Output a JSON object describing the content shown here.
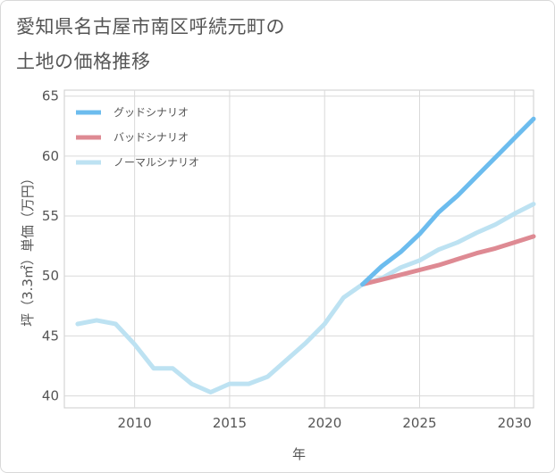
{
  "title_line1": "愛知県名古屋市南区呼続元町の",
  "title_line2": "土地の価格推移",
  "chart_data": {
    "type": "line",
    "xlabel": "年",
    "ylabel": "坪（3.3㎡）単価（万円）",
    "xlim": [
      2006.3,
      2031
    ],
    "ylim": [
      39,
      65.5
    ],
    "xticks": [
      2010,
      2015,
      2020,
      2025,
      2030
    ],
    "yticks": [
      40,
      45,
      50,
      55,
      60,
      65
    ],
    "grid": true,
    "legend_position": "top-left",
    "series": [
      {
        "name": "グッドシナリオ",
        "color": "#6cbcee",
        "x": [
          2022,
          2023,
          2024,
          2025,
          2026,
          2027,
          2028,
          2029,
          2030,
          2031
        ],
        "y": [
          49.3,
          50.8,
          52.0,
          53.5,
          55.3,
          56.7,
          58.3,
          59.9,
          61.5,
          63.1
        ]
      },
      {
        "name": "バッドシナリオ",
        "color": "#de8a93",
        "x": [
          2022,
          2023,
          2024,
          2025,
          2026,
          2027,
          2028,
          2029,
          2030,
          2031
        ],
        "y": [
          49.3,
          49.7,
          50.1,
          50.5,
          50.9,
          51.4,
          51.9,
          52.3,
          52.8,
          53.3
        ]
      },
      {
        "name": "ノーマルシナリオ",
        "color": "#bde2f2",
        "x": [
          2007,
          2008,
          2009,
          2010,
          2011,
          2012,
          2013,
          2014,
          2015,
          2016,
          2017,
          2018,
          2019,
          2020,
          2021,
          2022,
          2023,
          2024,
          2025,
          2026,
          2027,
          2028,
          2029,
          2030,
          2031
        ],
        "y": [
          46.0,
          46.3,
          46.0,
          44.3,
          42.3,
          42.3,
          41.0,
          40.3,
          41.0,
          41.0,
          41.6,
          43.0,
          44.4,
          46.0,
          48.2,
          49.3,
          49.8,
          50.7,
          51.3,
          52.2,
          52.8,
          53.6,
          54.3,
          55.2,
          56.0
        ]
      }
    ]
  }
}
